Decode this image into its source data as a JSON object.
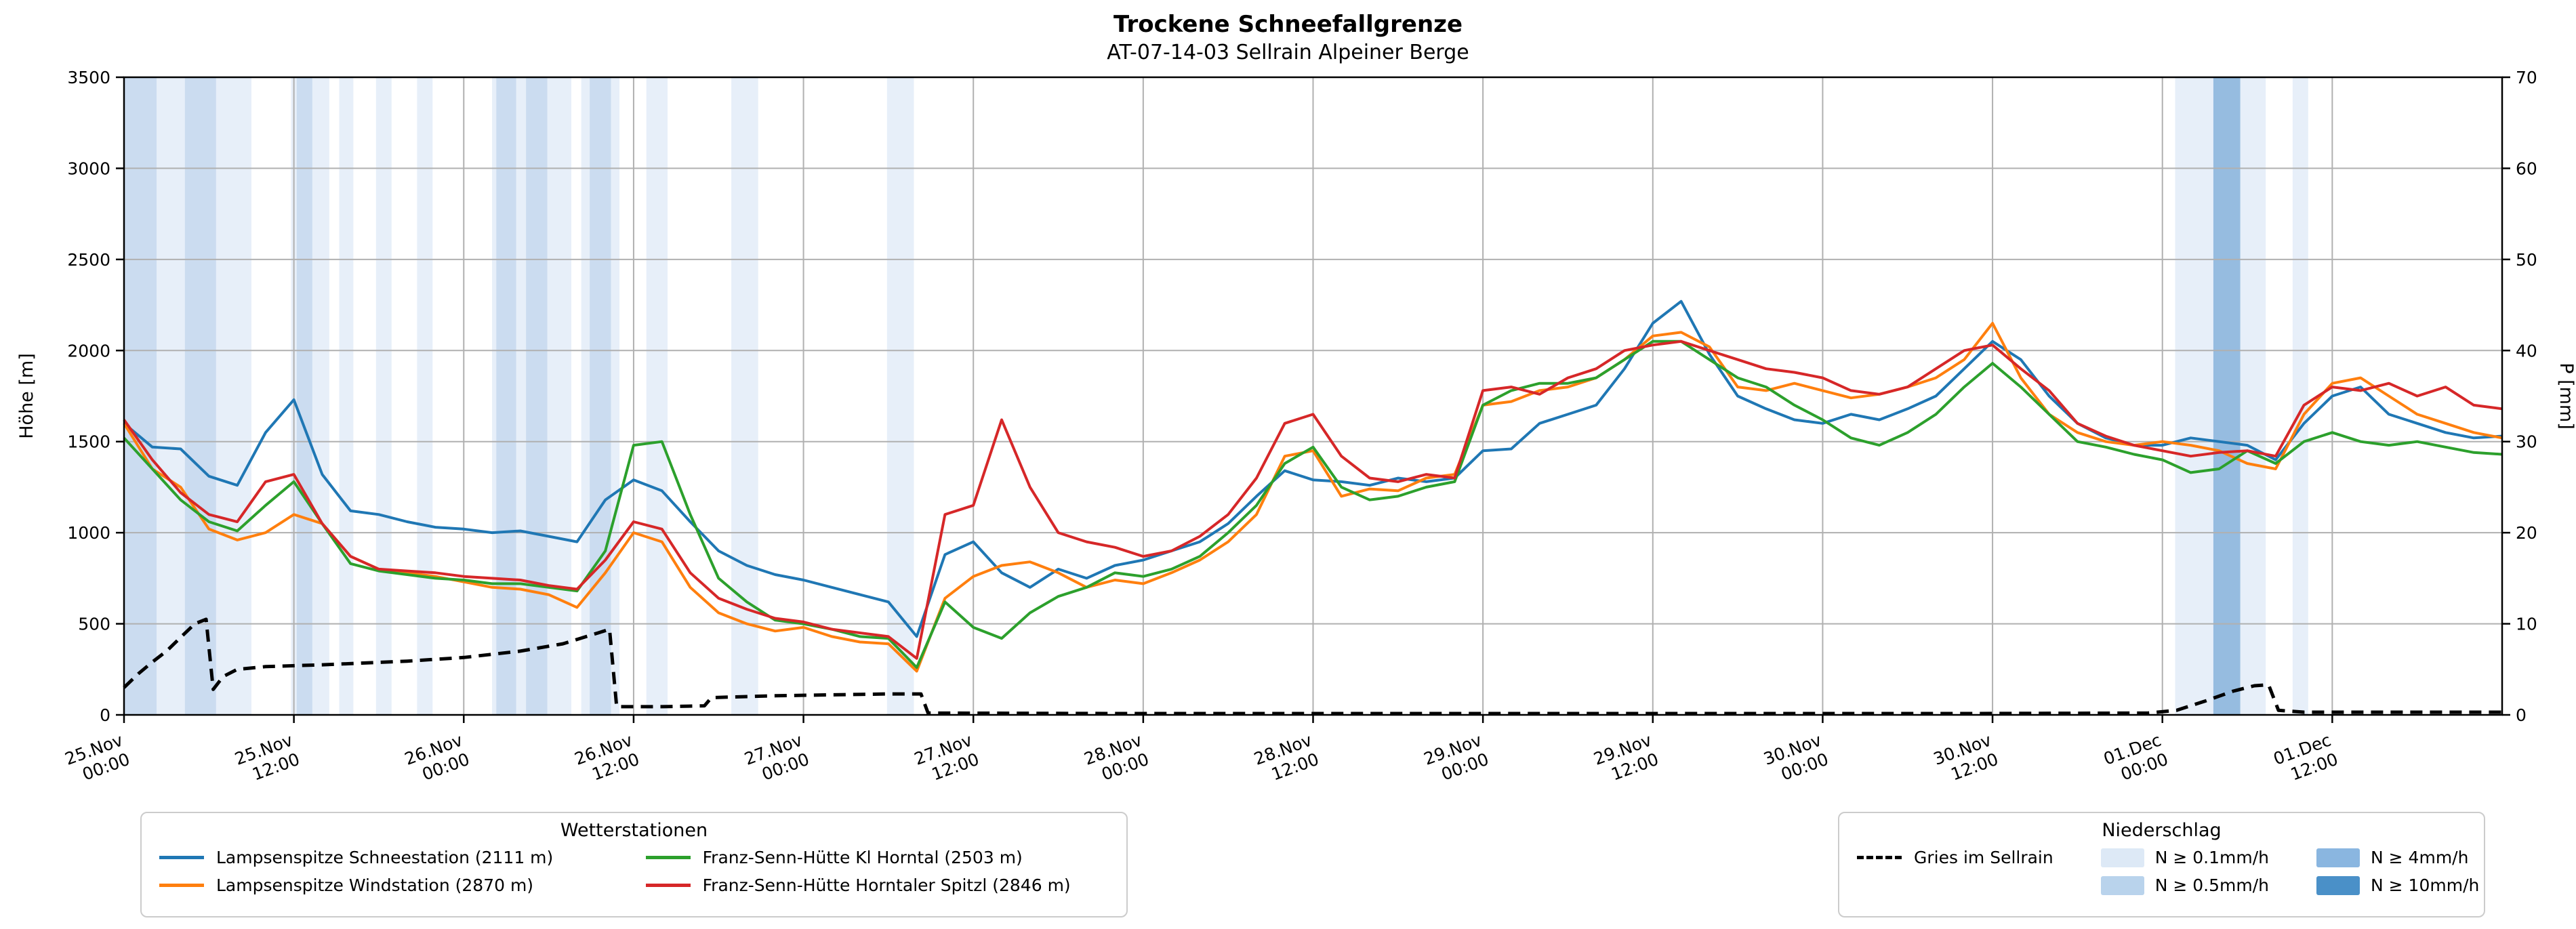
{
  "figure": {
    "title": "Trockene Schneefallgrenze",
    "subtitle": "AT-07-14-03 Sellrain Alpeiner Berge"
  },
  "chart_data": {
    "type": "line",
    "title": "Trockene Schneefallgrenze",
    "subtitle": "AT-07-14-03 Sellrain Alpeiner Berge",
    "ylabel_left": "Höhe [m]",
    "ylabel_right": "P [mm]",
    "ylim_left": [
      0,
      3500
    ],
    "ylim_right": [
      0,
      70
    ],
    "yticks_left": [
      0,
      500,
      1000,
      1500,
      2000,
      2500,
      3000,
      3500
    ],
    "yticks_right": [
      0,
      10,
      20,
      30,
      40,
      50,
      60,
      70
    ],
    "x_min": 0,
    "x_max": 168,
    "x_unit": "hours since 25.Nov 00:00",
    "grid": true,
    "grid_color": "#b0b0b0",
    "xticks": [
      {
        "h": 0,
        "lines": [
          "25.Nov",
          "00:00"
        ]
      },
      {
        "h": 12,
        "lines": [
          "25.Nov",
          "12:00"
        ]
      },
      {
        "h": 24,
        "lines": [
          "26.Nov",
          "00:00"
        ]
      },
      {
        "h": 36,
        "lines": [
          "26.Nov",
          "12:00"
        ]
      },
      {
        "h": 48,
        "lines": [
          "27.Nov",
          "00:00"
        ]
      },
      {
        "h": 60,
        "lines": [
          "27.Nov",
          "12:00"
        ]
      },
      {
        "h": 72,
        "lines": [
          "28.Nov",
          "00:00"
        ]
      },
      {
        "h": 84,
        "lines": [
          "28.Nov",
          "12:00"
        ]
      },
      {
        "h": 96,
        "lines": [
          "29.Nov",
          "00:00"
        ]
      },
      {
        "h": 108,
        "lines": [
          "29.Nov",
          "12:00"
        ]
      },
      {
        "h": 120,
        "lines": [
          "30.Nov",
          "00:00"
        ]
      },
      {
        "h": 132,
        "lines": [
          "30.Nov",
          "12:00"
        ]
      },
      {
        "h": 144,
        "lines": [
          "01.Dec",
          "00:00"
        ]
      },
      {
        "h": 156,
        "lines": [
          "01.Dec",
          "12:00"
        ]
      }
    ],
    "x_hours": [
      0,
      2,
      4,
      6,
      8,
      10,
      12,
      14,
      16,
      18,
      20,
      22,
      24,
      26,
      28,
      30,
      32,
      34,
      36,
      38,
      40,
      42,
      44,
      46,
      48,
      50,
      52,
      54,
      56,
      58,
      60,
      62,
      64,
      66,
      68,
      70,
      72,
      74,
      76,
      78,
      80,
      82,
      84,
      86,
      88,
      90,
      92,
      94,
      96,
      98,
      100,
      102,
      104,
      106,
      108,
      110,
      112,
      114,
      116,
      118,
      120,
      122,
      124,
      126,
      128,
      130,
      132,
      134,
      136,
      138,
      140,
      142,
      144,
      146,
      148,
      150,
      152,
      154,
      156,
      158,
      160,
      162,
      164,
      166,
      168
    ],
    "series": [
      {
        "name": "Lampsenspitze Schneestation (2111 m)",
        "color": "#1f77b4",
        "axis": "left",
        "style": "solid",
        "values": [
          1600,
          1470,
          1460,
          1310,
          1260,
          1550,
          1730,
          1320,
          1120,
          1100,
          1060,
          1030,
          1020,
          1000,
          1010,
          980,
          950,
          1180,
          1290,
          1230,
          1060,
          900,
          820,
          770,
          740,
          700,
          660,
          620,
          430,
          880,
          950,
          780,
          700,
          800,
          750,
          820,
          850,
          900,
          950,
          1050,
          1200,
          1340,
          1290,
          1280,
          1260,
          1300,
          1280,
          1300,
          1450,
          1460,
          1600,
          1650,
          1700,
          1900,
          2150,
          2270,
          1980,
          1750,
          1680,
          1620,
          1600,
          1650,
          1620,
          1680,
          1750,
          1900,
          2050,
          1950,
          1750,
          1600,
          1520,
          1480,
          1480,
          1520,
          1500,
          1480,
          1400,
          1600,
          1750,
          1800,
          1650,
          1600,
          1550,
          1520,
          1530
        ]
      },
      {
        "name": "Lampsenspitze Windstation (2870 m)",
        "color": "#ff7f0e",
        "axis": "left",
        "style": "solid",
        "values": [
          1600,
          1350,
          1250,
          1020,
          960,
          1000,
          1100,
          1050,
          870,
          800,
          780,
          760,
          730,
          700,
          690,
          660,
          590,
          780,
          1000,
          950,
          700,
          560,
          500,
          460,
          480,
          430,
          400,
          390,
          240,
          640,
          760,
          820,
          840,
          780,
          700,
          740,
          720,
          780,
          850,
          950,
          1100,
          1420,
          1450,
          1200,
          1240,
          1230,
          1300,
          1320,
          1700,
          1720,
          1780,
          1800,
          1850,
          1950,
          2080,
          2100,
          2020,
          1800,
          1780,
          1820,
          1780,
          1740,
          1760,
          1800,
          1850,
          1950,
          2150,
          1850,
          1650,
          1550,
          1500,
          1480,
          1500,
          1480,
          1450,
          1380,
          1350,
          1650,
          1820,
          1850,
          1750,
          1650,
          1600,
          1550,
          1520
        ]
      },
      {
        "name": "Franz-Senn-Hütte Kl Horntal (2503 m)",
        "color": "#2ca02c",
        "axis": "left",
        "style": "solid",
        "values": [
          1520,
          1350,
          1180,
          1060,
          1010,
          1150,
          1280,
          1050,
          830,
          790,
          770,
          750,
          740,
          720,
          720,
          700,
          680,
          900,
          1480,
          1500,
          1100,
          750,
          620,
          520,
          500,
          470,
          430,
          420,
          260,
          620,
          480,
          420,
          560,
          650,
          700,
          780,
          760,
          800,
          870,
          1000,
          1150,
          1380,
          1470,
          1250,
          1180,
          1200,
          1250,
          1280,
          1700,
          1780,
          1820,
          1820,
          1850,
          1950,
          2050,
          2050,
          1950,
          1850,
          1800,
          1700,
          1620,
          1520,
          1480,
          1550,
          1650,
          1800,
          1930,
          1800,
          1650,
          1500,
          1470,
          1430,
          1400,
          1330,
          1350,
          1450,
          1380,
          1500,
          1550,
          1500,
          1480,
          1500,
          1470,
          1440,
          1430
        ]
      },
      {
        "name": "Franz-Senn-Hütte Horntaler Spitzl (2846 m)",
        "color": "#d62728",
        "axis": "left",
        "style": "solid",
        "values": [
          1620,
          1400,
          1220,
          1100,
          1060,
          1280,
          1320,
          1050,
          870,
          800,
          790,
          780,
          760,
          750,
          740,
          710,
          690,
          850,
          1060,
          1020,
          780,
          640,
          580,
          530,
          510,
          470,
          450,
          430,
          310,
          1100,
          1150,
          1620,
          1250,
          1000,
          950,
          920,
          870,
          900,
          980,
          1100,
          1300,
          1600,
          1650,
          1420,
          1300,
          1280,
          1320,
          1300,
          1780,
          1800,
          1760,
          1850,
          1900,
          2000,
          2030,
          2050,
          2000,
          1950,
          1900,
          1880,
          1850,
          1780,
          1760,
          1800,
          1900,
          2000,
          2030,
          1900,
          1780,
          1600,
          1530,
          1480,
          1450,
          1420,
          1440,
          1450,
          1420,
          1700,
          1800,
          1780,
          1820,
          1750,
          1800,
          1700,
          1680
        ]
      },
      {
        "name": "Gries im Sellrain",
        "color": "#000000",
        "axis": "right",
        "style": "dashed",
        "x": [
          0,
          1,
          2,
          3,
          4,
          5,
          5.8,
          6.3,
          7,
          8,
          10,
          14,
          20,
          24,
          28,
          31,
          33.5,
          34.3,
          34.8,
          38,
          41,
          41.5,
          46,
          50,
          54,
          56.3,
          56.8,
          70,
          90,
          110,
          130,
          143,
          145,
          147,
          149,
          150.5,
          151.5,
          152.2,
          154,
          160,
          168
        ],
        "values": [
          3.0,
          4.5,
          5.8,
          7.0,
          8.5,
          10.0,
          10.5,
          2.8,
          4.2,
          5.0,
          5.3,
          5.5,
          5.9,
          6.3,
          7.0,
          7.8,
          9.0,
          9.4,
          0.9,
          0.9,
          1.0,
          1.9,
          2.1,
          2.2,
          2.3,
          2.3,
          0.2,
          0.15,
          0.15,
          0.15,
          0.15,
          0.2,
          0.5,
          1.5,
          2.6,
          3.2,
          3.3,
          0.5,
          0.3,
          0.3,
          0.3
        ]
      }
    ],
    "band_levels": {
      "1": "#e7eff9",
      "2": "#cbdcf0",
      "3": "#96bce0",
      "4": "#4f93c9"
    },
    "precip_bands": [
      {
        "start": 0,
        "end": 9,
        "level": 1
      },
      {
        "start": 0,
        "end": 2.3,
        "level": 2
      },
      {
        "start": 4.3,
        "end": 6.5,
        "level": 2
      },
      {
        "start": 11.8,
        "end": 14.5,
        "level": 1
      },
      {
        "start": 12.2,
        "end": 13.3,
        "level": 2
      },
      {
        "start": 15.2,
        "end": 16.2,
        "level": 1
      },
      {
        "start": 17.8,
        "end": 18.9,
        "level": 1
      },
      {
        "start": 20.7,
        "end": 21.8,
        "level": 1
      },
      {
        "start": 26,
        "end": 31.6,
        "level": 1
      },
      {
        "start": 26.3,
        "end": 27.7,
        "level": 2
      },
      {
        "start": 28.4,
        "end": 29.9,
        "level": 2
      },
      {
        "start": 32.3,
        "end": 35,
        "level": 1
      },
      {
        "start": 32.9,
        "end": 34.4,
        "level": 2
      },
      {
        "start": 36.9,
        "end": 38.4,
        "level": 1
      },
      {
        "start": 42.9,
        "end": 44.8,
        "level": 1
      },
      {
        "start": 53.9,
        "end": 55.8,
        "level": 1
      },
      {
        "start": 144.9,
        "end": 151.3,
        "level": 1
      },
      {
        "start": 147.6,
        "end": 149.5,
        "level": 3
      },
      {
        "start": 153.2,
        "end": 154.3,
        "level": 1
      }
    ]
  },
  "legend_stations": {
    "title": "Wetterstationen",
    "items": [
      {
        "label": "Lampsenspitze Schneestation (2111 m)",
        "color": "#1f77b4"
      },
      {
        "label": "Lampsenspitze Windstation (2870 m)",
        "color": "#ff7f0e"
      },
      {
        "label": "Franz-Senn-Hütte Kl Horntal (2503 m)",
        "color": "#2ca02c"
      },
      {
        "label": "Franz-Senn-Hütte Horntaler Spitzl (2846 m)",
        "color": "#d62728"
      }
    ]
  },
  "legend_precip": {
    "title": "Niederschlag",
    "line_label": "Gries im Sellrain",
    "line_color": "#000000",
    "patch_items": [
      {
        "label": "N ≥ 0.1mm/h",
        "color": "#dde9f6"
      },
      {
        "label": "N ≥ 0.5mm/h",
        "color": "#b9d3ec"
      },
      {
        "label": "N ≥ 4mm/h",
        "color": "#8ab6e0"
      },
      {
        "label": "N ≥ 10mm/h",
        "color": "#4a90c8"
      }
    ]
  }
}
